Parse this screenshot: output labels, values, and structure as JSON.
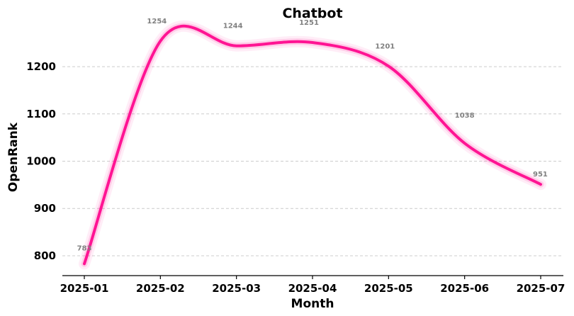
{
  "chart_data": {
    "type": "line",
    "title": "Chatbot",
    "xlabel": "Month",
    "ylabel": "OpenRank",
    "x": [
      "2025-01",
      "2025-02",
      "2025-03",
      "2025-04",
      "2025-05",
      "2025-06",
      "2025-07"
    ],
    "series": [
      {
        "values": [
          783,
          1254,
          1244,
          1251,
          1201,
          1038,
          951
        ],
        "color": "#ff1493"
      }
    ],
    "data_labels": [
      "783",
      "1254",
      "1244",
      "1251",
      "1201",
      "1038",
      "951"
    ],
    "yticks": [
      800,
      900,
      1000,
      1100,
      1200
    ],
    "ytick_labels": [
      "800",
      "900",
      "1000",
      "1100",
      "1200"
    ],
    "ylim": [
      758,
      1305
    ],
    "grid": "horizontal-dashed",
    "smooth": true
  }
}
